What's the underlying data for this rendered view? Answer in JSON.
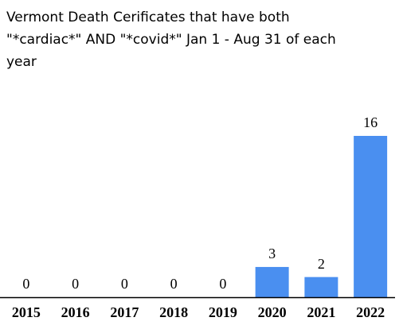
{
  "chart_data": {
    "type": "bar",
    "title": "Vermont Death Cerificates that have both \"*cardiac*\" AND \"*covid*\" Jan 1 - Aug 31 of each year",
    "categories": [
      "2015",
      "2016",
      "2017",
      "2018",
      "2019",
      "2020",
      "2021",
      "2022"
    ],
    "values": [
      0,
      0,
      0,
      0,
      0,
      3,
      2,
      16
    ],
    "color": "#4a8ff0"
  }
}
